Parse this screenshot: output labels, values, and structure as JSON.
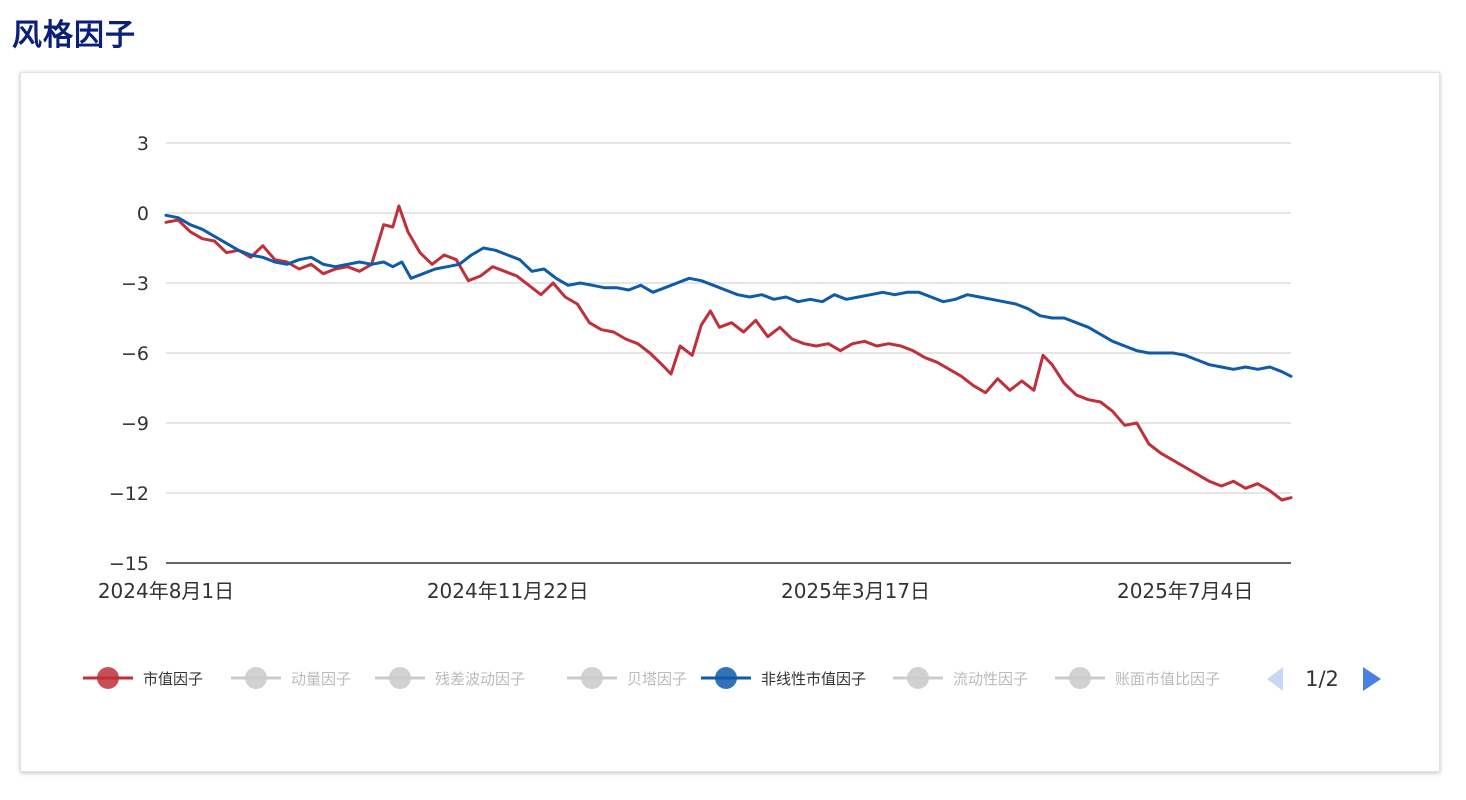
{
  "page": {
    "title": "风格因子"
  },
  "colors": {
    "title": "#0a1f7a",
    "grid": "#cccccc",
    "axis": "#333333",
    "inactive": "#cccccc",
    "pager_active": "#4a7fe6",
    "pager_inactive": "#c7d8f5"
  },
  "legend": {
    "items": [
      {
        "label": "市值因子",
        "color": "#c0303a",
        "active": true
      },
      {
        "label": "动量因子",
        "color": "#cccccc",
        "active": false
      },
      {
        "label": "残差波动因子",
        "color": "#cccccc",
        "active": false
      },
      {
        "label": "贝塔因子",
        "color": "#cccccc",
        "active": false
      },
      {
        "label": "非线性市值因子",
        "color": "#0f5ba8",
        "active": true
      },
      {
        "label": "流动性因子",
        "color": "#cccccc",
        "active": false
      },
      {
        "label": "账面市值比因子",
        "color": "#cccccc",
        "active": false
      }
    ],
    "pager": {
      "text": "1/2",
      "prev_icon": "triangle-left-icon",
      "next_icon": "triangle-right-icon"
    }
  },
  "chart_data": {
    "type": "line",
    "ylim": [
      -15,
      3
    ],
    "yticks": [
      "3",
      "0",
      "−3",
      "−6",
      "−9",
      "−12",
      "−15"
    ],
    "ytick_values": [
      3,
      0,
      -3,
      -6,
      -9,
      -12,
      -15
    ],
    "xtick_labels": [
      "2024年8月1日",
      "2024年11月22日",
      "2025年3月17日",
      "2025年7月4日"
    ],
    "xtick_dates": [
      "2024-08-01",
      "2024-11-22",
      "2025-03-17",
      "2025-07-04"
    ],
    "grid": true,
    "legend_position": "bottom",
    "series": [
      {
        "name": "市值因子",
        "color": "#c0303a",
        "points": [
          [
            "2024-08-01",
            -0.4
          ],
          [
            "2024-08-05",
            -0.3
          ],
          [
            "2024-08-09",
            -0.8
          ],
          [
            "2024-08-13",
            -1.1
          ],
          [
            "2024-08-17",
            -1.2
          ],
          [
            "2024-08-21",
            -1.7
          ],
          [
            "2024-08-25",
            -1.6
          ],
          [
            "2024-08-29",
            -1.9
          ],
          [
            "2024-09-02",
            -1.4
          ],
          [
            "2024-09-06",
            -2.0
          ],
          [
            "2024-09-10",
            -2.1
          ],
          [
            "2024-09-14",
            -2.4
          ],
          [
            "2024-09-18",
            -2.2
          ],
          [
            "2024-09-22",
            -2.6
          ],
          [
            "2024-09-26",
            -2.4
          ],
          [
            "2024-09-30",
            -2.3
          ],
          [
            "2024-10-04",
            -2.5
          ],
          [
            "2024-10-08",
            -2.2
          ],
          [
            "2024-10-12",
            -0.5
          ],
          [
            "2024-10-15",
            -0.6
          ],
          [
            "2024-10-17",
            0.3
          ],
          [
            "2024-10-20",
            -0.8
          ],
          [
            "2024-10-24",
            -1.7
          ],
          [
            "2024-10-28",
            -2.2
          ],
          [
            "2024-11-01",
            -1.8
          ],
          [
            "2024-11-05",
            -2.0
          ],
          [
            "2024-11-09",
            -2.9
          ],
          [
            "2024-11-13",
            -2.7
          ],
          [
            "2024-11-17",
            -2.3
          ],
          [
            "2024-11-21",
            -2.5
          ],
          [
            "2024-11-25",
            -2.7
          ],
          [
            "2024-11-29",
            -3.1
          ],
          [
            "2024-12-03",
            -3.5
          ],
          [
            "2024-12-07",
            -3.0
          ],
          [
            "2024-12-11",
            -3.6
          ],
          [
            "2024-12-15",
            -3.9
          ],
          [
            "2024-12-19",
            -4.7
          ],
          [
            "2024-12-23",
            -5.0
          ],
          [
            "2024-12-27",
            -5.1
          ],
          [
            "2024-12-31",
            -5.4
          ],
          [
            "2025-01-04",
            -5.6
          ],
          [
            "2025-01-08",
            -6.0
          ],
          [
            "2025-01-12",
            -6.5
          ],
          [
            "2025-01-15",
            -6.9
          ],
          [
            "2025-01-18",
            -5.7
          ],
          [
            "2025-01-22",
            -6.1
          ],
          [
            "2025-01-25",
            -4.8
          ],
          [
            "2025-01-28",
            -4.2
          ],
          [
            "2025-01-31",
            -4.9
          ],
          [
            "2025-02-04",
            -4.7
          ],
          [
            "2025-02-08",
            -5.1
          ],
          [
            "2025-02-12",
            -4.6
          ],
          [
            "2025-02-16",
            -5.3
          ],
          [
            "2025-02-20",
            -4.9
          ],
          [
            "2025-02-24",
            -5.4
          ],
          [
            "2025-02-28",
            -5.6
          ],
          [
            "2025-03-04",
            -5.7
          ],
          [
            "2025-03-08",
            -5.6
          ],
          [
            "2025-03-12",
            -5.9
          ],
          [
            "2025-03-16",
            -5.6
          ],
          [
            "2025-03-20",
            -5.5
          ],
          [
            "2025-03-24",
            -5.7
          ],
          [
            "2025-03-28",
            -5.6
          ],
          [
            "2025-04-01",
            -5.7
          ],
          [
            "2025-04-05",
            -5.9
          ],
          [
            "2025-04-09",
            -6.2
          ],
          [
            "2025-04-13",
            -6.4
          ],
          [
            "2025-04-17",
            -6.7
          ],
          [
            "2025-04-21",
            -7.0
          ],
          [
            "2025-04-25",
            -7.4
          ],
          [
            "2025-04-29",
            -7.7
          ],
          [
            "2025-05-03",
            -7.1
          ],
          [
            "2025-05-07",
            -7.6
          ],
          [
            "2025-05-11",
            -7.2
          ],
          [
            "2025-05-15",
            -7.6
          ],
          [
            "2025-05-18",
            -6.1
          ],
          [
            "2025-05-21",
            -6.5
          ],
          [
            "2025-05-25",
            -7.3
          ],
          [
            "2025-05-29",
            -7.8
          ],
          [
            "2025-06-02",
            -8.0
          ],
          [
            "2025-06-06",
            -8.1
          ],
          [
            "2025-06-10",
            -8.5
          ],
          [
            "2025-06-14",
            -9.1
          ],
          [
            "2025-06-18",
            -9.0
          ],
          [
            "2025-06-22",
            -9.9
          ],
          [
            "2025-06-26",
            -10.3
          ],
          [
            "2025-06-30",
            -10.6
          ],
          [
            "2025-07-04",
            -10.9
          ],
          [
            "2025-07-08",
            -11.2
          ],
          [
            "2025-07-12",
            -11.5
          ],
          [
            "2025-07-16",
            -11.7
          ],
          [
            "2025-07-20",
            -11.5
          ],
          [
            "2025-07-24",
            -11.8
          ],
          [
            "2025-07-28",
            -11.6
          ],
          [
            "2025-08-01",
            -11.9
          ],
          [
            "2025-08-05",
            -12.3
          ],
          [
            "2025-08-08",
            -12.2
          ]
        ]
      },
      {
        "name": "非线性市值因子",
        "color": "#0f5ba8",
        "points": [
          [
            "2024-08-01",
            -0.1
          ],
          [
            "2024-08-05",
            -0.2
          ],
          [
            "2024-08-09",
            -0.5
          ],
          [
            "2024-08-13",
            -0.7
          ],
          [
            "2024-08-17",
            -1.0
          ],
          [
            "2024-08-21",
            -1.3
          ],
          [
            "2024-08-25",
            -1.6
          ],
          [
            "2024-08-29",
            -1.8
          ],
          [
            "2024-09-02",
            -1.9
          ],
          [
            "2024-09-06",
            -2.1
          ],
          [
            "2024-09-10",
            -2.2
          ],
          [
            "2024-09-14",
            -2.0
          ],
          [
            "2024-09-18",
            -1.9
          ],
          [
            "2024-09-22",
            -2.2
          ],
          [
            "2024-09-26",
            -2.3
          ],
          [
            "2024-09-30",
            -2.2
          ],
          [
            "2024-10-04",
            -2.1
          ],
          [
            "2024-10-08",
            -2.2
          ],
          [
            "2024-10-12",
            -2.1
          ],
          [
            "2024-10-15",
            -2.3
          ],
          [
            "2024-10-18",
            -2.1
          ],
          [
            "2024-10-21",
            -2.8
          ],
          [
            "2024-10-25",
            -2.6
          ],
          [
            "2024-10-29",
            -2.4
          ],
          [
            "2024-11-02",
            -2.3
          ],
          [
            "2024-11-06",
            -2.2
          ],
          [
            "2024-11-10",
            -1.8
          ],
          [
            "2024-11-14",
            -1.5
          ],
          [
            "2024-11-18",
            -1.6
          ],
          [
            "2024-11-22",
            -1.8
          ],
          [
            "2024-11-26",
            -2.0
          ],
          [
            "2024-11-30",
            -2.5
          ],
          [
            "2024-12-04",
            -2.4
          ],
          [
            "2024-12-08",
            -2.8
          ],
          [
            "2024-12-12",
            -3.1
          ],
          [
            "2024-12-16",
            -3.0
          ],
          [
            "2024-12-20",
            -3.1
          ],
          [
            "2024-12-24",
            -3.2
          ],
          [
            "2024-12-28",
            -3.2
          ],
          [
            "2025-01-01",
            -3.3
          ],
          [
            "2025-01-05",
            -3.1
          ],
          [
            "2025-01-09",
            -3.4
          ],
          [
            "2025-01-13",
            -3.2
          ],
          [
            "2025-01-17",
            -3.0
          ],
          [
            "2025-01-21",
            -2.8
          ],
          [
            "2025-01-25",
            -2.9
          ],
          [
            "2025-01-29",
            -3.1
          ],
          [
            "2025-02-02",
            -3.3
          ],
          [
            "2025-02-06",
            -3.5
          ],
          [
            "2025-02-10",
            -3.6
          ],
          [
            "2025-02-14",
            -3.5
          ],
          [
            "2025-02-18",
            -3.7
          ],
          [
            "2025-02-22",
            -3.6
          ],
          [
            "2025-02-26",
            -3.8
          ],
          [
            "2025-03-02",
            -3.7
          ],
          [
            "2025-03-06",
            -3.8
          ],
          [
            "2025-03-10",
            -3.5
          ],
          [
            "2025-03-14",
            -3.7
          ],
          [
            "2025-03-18",
            -3.6
          ],
          [
            "2025-03-22",
            -3.5
          ],
          [
            "2025-03-26",
            -3.4
          ],
          [
            "2025-03-30",
            -3.5
          ],
          [
            "2025-04-03",
            -3.4
          ],
          [
            "2025-04-07",
            -3.4
          ],
          [
            "2025-04-11",
            -3.6
          ],
          [
            "2025-04-15",
            -3.8
          ],
          [
            "2025-04-19",
            -3.7
          ],
          [
            "2025-04-23",
            -3.5
          ],
          [
            "2025-04-27",
            -3.6
          ],
          [
            "2025-05-01",
            -3.7
          ],
          [
            "2025-05-05",
            -3.8
          ],
          [
            "2025-05-09",
            -3.9
          ],
          [
            "2025-05-13",
            -4.1
          ],
          [
            "2025-05-17",
            -4.4
          ],
          [
            "2025-05-21",
            -4.5
          ],
          [
            "2025-05-25",
            -4.5
          ],
          [
            "2025-05-29",
            -4.7
          ],
          [
            "2025-06-02",
            -4.9
          ],
          [
            "2025-06-06",
            -5.2
          ],
          [
            "2025-06-10",
            -5.5
          ],
          [
            "2025-06-14",
            -5.7
          ],
          [
            "2025-06-18",
            -5.9
          ],
          [
            "2025-06-22",
            -6.0
          ],
          [
            "2025-06-26",
            -6.0
          ],
          [
            "2025-06-30",
            -6.0
          ],
          [
            "2025-07-04",
            -6.1
          ],
          [
            "2025-07-08",
            -6.3
          ],
          [
            "2025-07-12",
            -6.5
          ],
          [
            "2025-07-16",
            -6.6
          ],
          [
            "2025-07-20",
            -6.7
          ],
          [
            "2025-07-24",
            -6.6
          ],
          [
            "2025-07-28",
            -6.7
          ],
          [
            "2025-08-01",
            -6.6
          ],
          [
            "2025-08-05",
            -6.8
          ],
          [
            "2025-08-08",
            -7.0
          ]
        ]
      }
    ]
  }
}
